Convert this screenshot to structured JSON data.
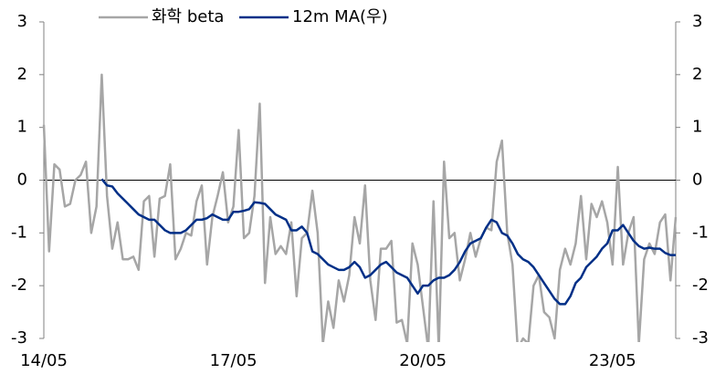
{
  "chart_data": {
    "type": "line",
    "categories": [
      "14/05",
      null,
      null,
      null,
      null,
      null,
      null,
      null,
      null,
      null,
      null,
      null,
      null,
      null,
      null,
      null,
      null,
      null,
      null,
      null,
      null,
      null,
      null,
      null,
      null,
      null,
      null,
      null,
      null,
      null,
      null,
      null,
      null,
      null,
      null,
      null,
      "17/05",
      null,
      null,
      null,
      null,
      null,
      null,
      null,
      null,
      null,
      null,
      null,
      null,
      null,
      null,
      null,
      null,
      null,
      null,
      null,
      null,
      null,
      null,
      null,
      null,
      null,
      null,
      null,
      null,
      null,
      null,
      null,
      null,
      null,
      null,
      null,
      "20/05",
      null,
      null,
      null,
      null,
      null,
      null,
      null,
      null,
      null,
      null,
      null,
      null,
      null,
      null,
      null,
      null,
      null,
      null,
      null,
      null,
      null,
      null,
      null,
      null,
      null,
      null,
      null,
      null,
      null,
      null,
      null,
      null,
      null,
      null,
      null,
      "23/05",
      null,
      null,
      null,
      null,
      null,
      null,
      null,
      null,
      null,
      null,
      null,
      null
    ],
    "series": [
      {
        "name": "화학 beta",
        "color": "#a6a6a6",
        "values": [
          1.05,
          -1.35,
          0.3,
          0.2,
          -0.5,
          -0.45,
          0.0,
          0.1,
          0.35,
          -1.0,
          -0.5,
          2.0,
          -0.3,
          -1.3,
          -0.8,
          -1.5,
          -1.5,
          -1.45,
          -1.7,
          -0.4,
          -0.3,
          -1.45,
          -0.35,
          -0.3,
          0.3,
          -1.5,
          -1.3,
          -1.0,
          -1.05,
          -0.4,
          -0.1,
          -1.6,
          -0.7,
          -0.3,
          0.15,
          -0.8,
          -0.5,
          0.95,
          -1.1,
          -1.0,
          -0.3,
          1.45,
          -1.95,
          -0.7,
          -1.4,
          -1.25,
          -1.4,
          -0.8,
          -2.2,
          -1.1,
          -1.0,
          -0.2,
          -1.0,
          -3.1,
          -2.3,
          -2.8,
          -1.9,
          -2.3,
          -1.8,
          -0.7,
          -1.2,
          -0.1,
          -1.9,
          -2.65,
          -1.3,
          -1.3,
          -1.15,
          -2.7,
          -2.65,
          -3.1,
          -1.2,
          -1.6,
          -2.4,
          -3.2,
          -0.4,
          -3.2,
          0.35,
          -1.1,
          -1.0,
          -1.9,
          -1.5,
          -1.0,
          -1.45,
          -1.1,
          -0.9,
          -0.95,
          0.35,
          0.75,
          -1.0,
          -1.6,
          -3.2,
          -3.0,
          -3.1,
          -2.0,
          -1.8,
          -2.5,
          -2.6,
          -3.0,
          -1.7,
          -1.3,
          -1.6,
          -1.2,
          -0.3,
          -1.5,
          -0.45,
          -0.7,
          -0.4,
          -0.8,
          -1.6,
          0.25,
          -1.6,
          -1.0,
          -0.7,
          -3.1,
          -1.5,
          -1.2,
          -1.4,
          -0.8,
          -0.65,
          -1.9,
          -0.7
        ]
      },
      {
        "name": "12m MA(우)",
        "color": "#002f87",
        "axis": "y2",
        "values": [
          null,
          null,
          null,
          null,
          null,
          null,
          null,
          null,
          null,
          null,
          null,
          0.02,
          -0.1,
          -0.12,
          -0.25,
          -0.35,
          -0.45,
          -0.55,
          -0.65,
          -0.7,
          -0.75,
          -0.75,
          -0.85,
          -0.95,
          -1.0,
          -1.0,
          -1.0,
          -0.95,
          -0.85,
          -0.75,
          -0.75,
          -0.72,
          -0.65,
          -0.7,
          -0.75,
          -0.75,
          -0.6,
          -0.6,
          -0.58,
          -0.55,
          -0.42,
          -0.43,
          -0.45,
          -0.55,
          -0.65,
          -0.7,
          -0.75,
          -0.95,
          -0.95,
          -0.88,
          -1.0,
          -1.35,
          -1.4,
          -1.5,
          -1.6,
          -1.65,
          -1.7,
          -1.7,
          -1.65,
          -1.55,
          -1.65,
          -1.85,
          -1.8,
          -1.7,
          -1.6,
          -1.55,
          -1.65,
          -1.75,
          -1.8,
          -1.85,
          -2.0,
          -2.15,
          -2.0,
          -2.0,
          -1.9,
          -1.85,
          -1.85,
          -1.8,
          -1.7,
          -1.55,
          -1.35,
          -1.2,
          -1.15,
          -1.1,
          -0.9,
          -0.75,
          -0.8,
          -1.0,
          -1.05,
          -1.2,
          -1.4,
          -1.5,
          -1.55,
          -1.65,
          -1.8,
          -1.95,
          -2.1,
          -2.25,
          -2.35,
          -2.35,
          -2.2,
          -1.95,
          -1.85,
          -1.65,
          -1.55,
          -1.45,
          -1.3,
          -1.2,
          -0.95,
          -0.95,
          -0.85,
          -1.0,
          -1.15,
          -1.25,
          -1.3,
          -1.28,
          -1.3,
          -1.3,
          -1.38,
          -1.42,
          -1.42
        ]
      }
    ],
    "ylim": [
      -3,
      3
    ],
    "yticks": [
      -3,
      -2,
      -1,
      0,
      1,
      2,
      3
    ],
    "y2lim": [
      -3,
      3
    ],
    "y2ticks": [
      -3,
      -2,
      -1,
      0,
      1,
      2,
      3
    ],
    "grid": false
  }
}
